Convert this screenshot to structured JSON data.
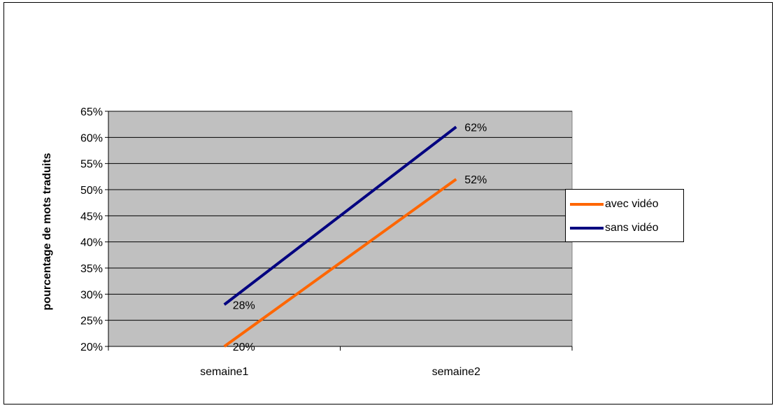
{
  "chart_data": {
    "type": "line",
    "title": "",
    "xlabel": "",
    "ylabel": "pourcentage de mots traduits",
    "categories": [
      "semaine1",
      "semaine2"
    ],
    "ylim": [
      20,
      65
    ],
    "yticks": [
      "20%",
      "25%",
      "30%",
      "35%",
      "40%",
      "45%",
      "50%",
      "55%",
      "60%",
      "65%"
    ],
    "grid": true,
    "legend_position": "right",
    "plot_background": "#C0C0C0",
    "series": [
      {
        "name": "avec vidéo",
        "color": "#FF6600",
        "values": [
          20,
          52
        ],
        "labels": [
          "20%",
          "52%"
        ]
      },
      {
        "name": "sans vidéo",
        "color": "#000080",
        "values": [
          28,
          62
        ],
        "labels": [
          "28%",
          "62%"
        ]
      }
    ]
  }
}
